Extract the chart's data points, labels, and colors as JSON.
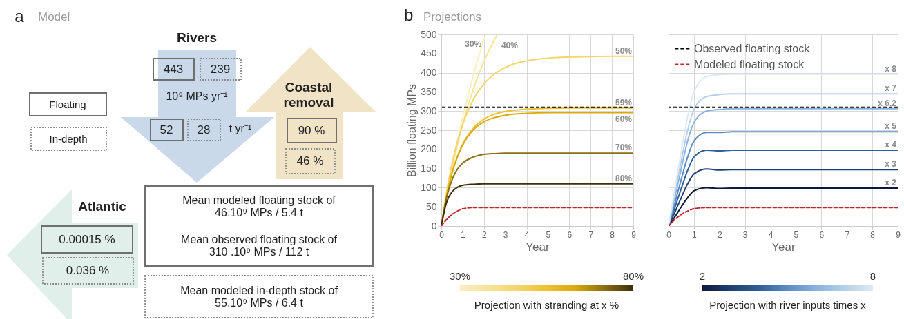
{
  "chart_data": [
    {
      "type": "other",
      "title": "Model",
      "annotations": [
        "a",
        "Rivers",
        "443",
        "239",
        "10⁹ MPs yr⁻¹",
        "52",
        "28",
        "t yr⁻¹",
        "Coastal removal",
        "90 %",
        "46 %",
        "Floating",
        "In-depth",
        "Atlantic",
        "0.00015 %",
        "0.036 %",
        "Mean modeled floating stock of 46.10⁹ MPs / 5.4 t",
        "Mean observed floating stock of 310 .10⁹ MPs / 112 t",
        "Mean modeled in-depth stock of 55.10⁹ MPs / 6.4 t"
      ]
    },
    {
      "type": "line",
      "title": "Projections",
      "annotations": [
        "b"
      ],
      "xlabel": "Year",
      "ylabel": "Billion floating MPs",
      "x": [
        0,
        0.25,
        0.5,
        0.75,
        1,
        1.5,
        2,
        2.5,
        3,
        4,
        5,
        6,
        7,
        8,
        9
      ],
      "series": [
        {
          "name": "30%",
          "color": "#fbeec0",
          "x": [
            0,
            0.25,
            0.5,
            0.75,
            1,
            1.5,
            2,
            2.08
          ],
          "values": [
            0,
            80,
            154,
            221,
            283,
            393,
            487,
            500
          ]
        },
        {
          "name": "40%",
          "color": "#f8e39a",
          "x": [
            0,
            0.25,
            0.5,
            0.75,
            1,
            1.5,
            2,
            2.5,
            2.62
          ],
          "values": [
            0,
            78,
            148,
            210,
            265,
            357,
            430,
            487,
            500
          ]
        },
        {
          "name": "50%",
          "color": "#f4d56a",
          "values": [
            0,
            90,
            162,
            219,
            264,
            330,
            371,
            397,
            414,
            431,
            438,
            441,
            442,
            443,
            443
          ]
        },
        {
          "name": "59%",
          "color": "#f0c030",
          "values": [
            0,
            79,
            137,
            180,
            213,
            255,
            279,
            292,
            299,
            305,
            307,
            308,
            308,
            308,
            308
          ]
        },
        {
          "name": "60%",
          "color": "#dba90a",
          "values": [
            0,
            79,
            138,
            180,
            211,
            251,
            272,
            283,
            289,
            294,
            296,
            296,
            296,
            296,
            296
          ]
        },
        {
          "name": "70%",
          "color": "#8c6d12",
          "values": [
            0,
            75,
            120,
            148,
            164,
            180,
            187,
            189,
            190,
            190,
            190,
            190,
            190,
            190,
            190
          ]
        },
        {
          "name": "80%",
          "color": "#3b2f0c",
          "values": [
            0,
            62,
            89,
            101,
            106,
            109,
            110,
            110,
            110,
            110,
            110,
            110,
            110,
            110,
            110
          ]
        },
        {
          "color": "#c0242c",
          "line_style": "dashed",
          "values": [
            0,
            17,
            30,
            39,
            45,
            48,
            48,
            48,
            48,
            48,
            48,
            48,
            48,
            48,
            48
          ]
        }
      ],
      "xlim": [
        0,
        9
      ],
      "ylim": [
        0,
        500
      ],
      "xticks": [
        0,
        1,
        2,
        3,
        4,
        5,
        6,
        7,
        8,
        9
      ],
      "yticks": [
        0,
        50,
        100,
        150,
        200,
        250,
        300,
        350,
        400,
        450,
        500
      ],
      "grid": true,
      "ref_lines": [
        {
          "axis": "y",
          "value": 310,
          "color": "#000000",
          "line_style": "dashed"
        }
      ],
      "clabel": "Projection with stranding at x %",
      "clim": [
        30,
        80
      ],
      "cticks": [
        {
          "value": 30,
          "label": "30%"
        },
        {
          "value": 80,
          "label": "80%"
        }
      ]
    },
    {
      "type": "line",
      "xlabel": "Year",
      "x": [
        0,
        0.25,
        0.5,
        0.75,
        1,
        1.5,
        2,
        2.5,
        3,
        4,
        5,
        6,
        7,
        8,
        9
      ],
      "series": [
        {
          "name": "x 2",
          "color": "#0c1a3a",
          "values": [
            0,
            24,
            50,
            74,
            92,
            100,
            98,
            99,
            99,
            99,
            99,
            99,
            99,
            99,
            99
          ]
        },
        {
          "name": "x 3",
          "color": "#1f3f70",
          "values": [
            0,
            36,
            74,
            110,
            136,
            149,
            146,
            147,
            147,
            147,
            147,
            147,
            147,
            147,
            147
          ]
        },
        {
          "name": "x 4",
          "color": "#2e5f9a",
          "values": [
            0,
            48,
            98,
            145,
            180,
            198,
            196,
            198,
            198,
            198,
            198,
            198,
            198,
            198,
            198
          ]
        },
        {
          "name": "x 5",
          "color": "#5a8cc4",
          "values": [
            0,
            60,
            122,
            180,
            222,
            244,
            244,
            246,
            246,
            246,
            246,
            246,
            246,
            246,
            246
          ]
        },
        {
          "name": "x 6.2",
          "color": "#8ab2dc",
          "values": [
            0,
            75,
            150,
            222,
            270,
            300,
            304,
            306,
            306,
            306,
            306,
            306,
            306,
            306,
            306
          ]
        },
        {
          "name": "x 7",
          "color": "#b6d0ea",
          "values": [
            0,
            85,
            170,
            250,
            305,
            338,
            343,
            345,
            345,
            345,
            345,
            345,
            345,
            345,
            345
          ]
        },
        {
          "name": "x 8",
          "color": "#dde9f5",
          "values": [
            0,
            97,
            195,
            285,
            350,
            390,
            395,
            396,
            396,
            396,
            396,
            396,
            396,
            396,
            396
          ]
        },
        {
          "name": "Modeled floating stock",
          "color": "#c0242c",
          "line_style": "dashed",
          "values": [
            0,
            17,
            30,
            39,
            45,
            48,
            48,
            48,
            48,
            48,
            48,
            48,
            48,
            48,
            48
          ]
        }
      ],
      "xlim": [
        0,
        9
      ],
      "ylim": [
        0,
        500
      ],
      "xticks": [
        0,
        1,
        2,
        3,
        4,
        5,
        6,
        7,
        8,
        9
      ],
      "yticks": [
        0,
        50,
        100,
        150,
        200,
        250,
        300,
        350,
        400,
        450,
        500
      ],
      "grid": true,
      "tick_labels": "x",
      "legend": "top left",
      "ref_lines": [
        {
          "axis": "y",
          "value": 310,
          "label": "Observed floating stock",
          "color": "#000000",
          "line_style": "dashed"
        }
      ],
      "clabel": "Projection with river inputs times x",
      "clim": [
        2,
        8
      ],
      "cticks": [
        2,
        8
      ]
    }
  ]
}
